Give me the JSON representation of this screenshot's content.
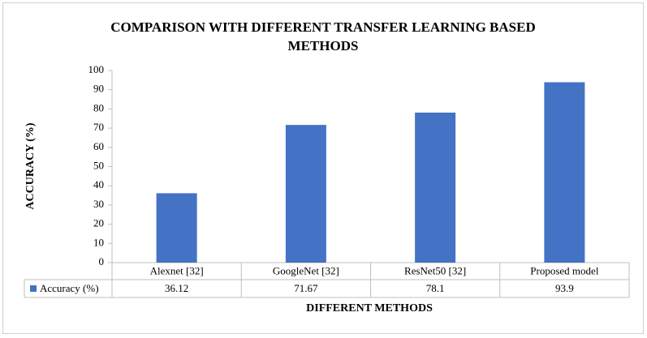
{
  "chart_data": {
    "type": "bar",
    "title": "COMPARISON WITH DIFFERENT TRANSFER LEARNING BASED METHODS",
    "y_label": "ACCURACY (%)",
    "x_label": "DIFFERENT METHODS",
    "categories": [
      "Alexnet [32]",
      "GoogleNet [32]",
      "ResNet50 [32]",
      "Proposed model"
    ],
    "series": [
      {
        "name": "Accuracy (%)",
        "color": "#4472c4",
        "values": [
          36.12,
          71.67,
          78.1,
          93.9
        ]
      }
    ],
    "ylim": [
      0,
      100
    ],
    "yticks": [
      0,
      10,
      20,
      30,
      40,
      50,
      60,
      70,
      80,
      90,
      100
    ],
    "grid": false
  }
}
